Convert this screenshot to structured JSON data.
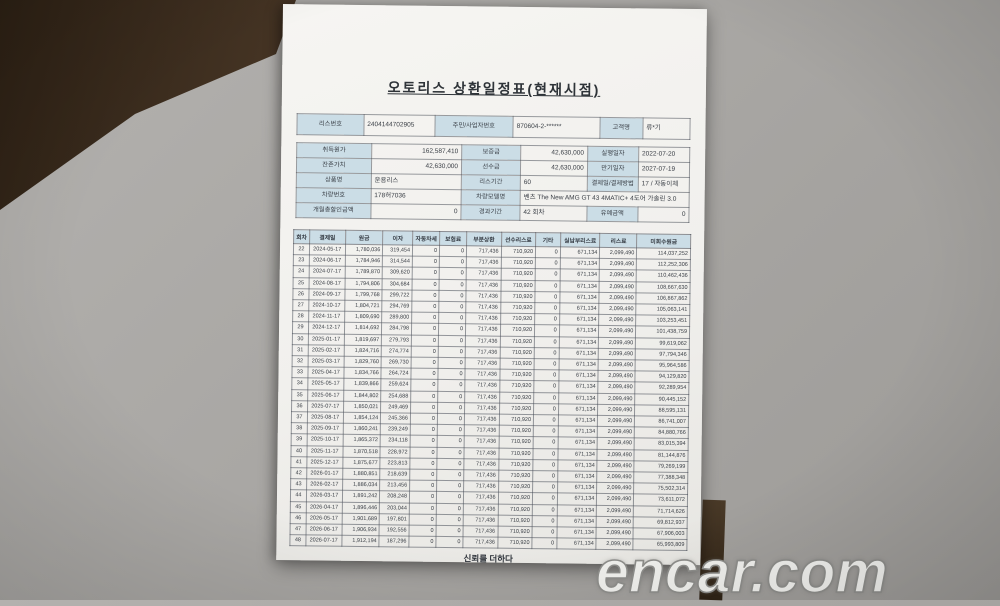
{
  "watermark": "encar.com",
  "colors": {
    "label_bg": "#cbdde6",
    "paper": "#f3f2ef",
    "wood": "#3a2b1f",
    "surface": "#a9a7a4"
  },
  "document": {
    "title": "오토리스 상환일정표(현재시점)",
    "footer_slogan": "신뢰를 더하다",
    "lease_head": {
      "lease_no_label": "리스번호",
      "lease_no": "2404144702905",
      "id_label": "주민/사업자번호",
      "id_no": "870604-2-******",
      "customer_label": "고객명",
      "customer": "류*기"
    },
    "contract": {
      "acq_cost_label": "취득원가",
      "acq_cost": "162,587,410",
      "deposit_label": "보증금",
      "deposit": "42,630,000",
      "start_date_label": "실행일자",
      "start_date": "2022-07-20",
      "residual_label": "잔존가치",
      "residual": "42,630,000",
      "advance_label": "선수금",
      "advance": "42,630,000",
      "maturity_label": "만기일자",
      "maturity": "2027-07-19",
      "product_label": "상품명",
      "product": "운용리스",
      "term_label": "리스기간",
      "term": "60",
      "pay_method_label": "결제일/결제방법",
      "pay_method": "17 / 자동이체",
      "car_no_label": "차량번호",
      "car_no": "178허7036",
      "model_label": "차량모델명",
      "model": "벤츠 The New AMG GT 43 4MATIC+ 4도어 가솔린 3.0",
      "discount_label": "개월총할인금액",
      "discount": "0",
      "elapsed_label": "경과기간",
      "elapsed": "42 회차",
      "grace_label": "유예금액",
      "grace": "0"
    },
    "schedule_table": {
      "headers": [
        "회차",
        "결제일",
        "원금",
        "이자",
        "자동차세",
        "보험료",
        "부분상환",
        "선수리스료",
        "기타",
        "실납부리스료",
        "리스료",
        "미회수원금"
      ],
      "rows": [
        [
          "22",
          "2024-05-17",
          "1,780,036",
          "319,454",
          "0",
          "0",
          "717,436",
          "710,920",
          "0",
          "671,134",
          "2,099,490",
          "114,037,252"
        ],
        [
          "23",
          "2024-06-17",
          "1,784,946",
          "314,544",
          "0",
          "0",
          "717,436",
          "710,920",
          "0",
          "671,134",
          "2,099,490",
          "112,252,306"
        ],
        [
          "24",
          "2024-07-17",
          "1,789,870",
          "309,620",
          "0",
          "0",
          "717,436",
          "710,920",
          "0",
          "671,134",
          "2,099,490",
          "110,462,436"
        ],
        [
          "25",
          "2024-08-17",
          "1,794,806",
          "304,684",
          "0",
          "0",
          "717,436",
          "710,920",
          "0",
          "671,134",
          "2,099,490",
          "108,667,630"
        ],
        [
          "26",
          "2024-09-17",
          "1,799,768",
          "299,722",
          "0",
          "0",
          "717,436",
          "710,920",
          "0",
          "671,134",
          "2,099,490",
          "106,867,862"
        ],
        [
          "27",
          "2024-10-17",
          "1,804,721",
          "294,769",
          "0",
          "0",
          "717,436",
          "710,920",
          "0",
          "671,134",
          "2,099,490",
          "105,063,141"
        ],
        [
          "28",
          "2024-11-17",
          "1,809,690",
          "289,800",
          "0",
          "0",
          "717,436",
          "710,920",
          "0",
          "671,134",
          "2,099,490",
          "103,253,451"
        ],
        [
          "29",
          "2024-12-17",
          "1,814,692",
          "284,798",
          "0",
          "0",
          "717,436",
          "710,920",
          "0",
          "671,134",
          "2,099,490",
          "101,438,759"
        ],
        [
          "30",
          "2025-01-17",
          "1,819,697",
          "279,793",
          "0",
          "0",
          "717,436",
          "710,920",
          "0",
          "671,134",
          "2,099,490",
          "99,619,062"
        ],
        [
          "31",
          "2025-02-17",
          "1,824,716",
          "274,774",
          "0",
          "0",
          "717,436",
          "710,920",
          "0",
          "671,134",
          "2,099,490",
          "97,794,346"
        ],
        [
          "32",
          "2025-03-17",
          "1,829,760",
          "269,730",
          "0",
          "0",
          "717,436",
          "710,920",
          "0",
          "671,134",
          "2,099,490",
          "95,964,586"
        ],
        [
          "33",
          "2025-04-17",
          "1,834,766",
          "264,724",
          "0",
          "0",
          "717,436",
          "710,920",
          "0",
          "671,134",
          "2,099,490",
          "94,129,820"
        ],
        [
          "34",
          "2025-05-17",
          "1,839,866",
          "259,624",
          "0",
          "0",
          "717,436",
          "710,920",
          "0",
          "671,134",
          "2,099,490",
          "92,289,954"
        ],
        [
          "35",
          "2025-06-17",
          "1,844,802",
          "254,688",
          "0",
          "0",
          "717,436",
          "710,920",
          "0",
          "671,134",
          "2,099,490",
          "90,445,152"
        ],
        [
          "36",
          "2025-07-17",
          "1,850,021",
          "249,469",
          "0",
          "0",
          "717,436",
          "710,920",
          "0",
          "671,134",
          "2,099,490",
          "88,595,131"
        ],
        [
          "37",
          "2025-08-17",
          "1,854,124",
          "245,366",
          "0",
          "0",
          "717,436",
          "710,920",
          "0",
          "671,134",
          "2,099,490",
          "86,741,007"
        ],
        [
          "38",
          "2025-09-17",
          "1,860,241",
          "239,249",
          "0",
          "0",
          "717,436",
          "710,920",
          "0",
          "671,134",
          "2,099,490",
          "84,880,766"
        ],
        [
          "39",
          "2025-10-17",
          "1,865,372",
          "234,118",
          "0",
          "0",
          "717,436",
          "710,920",
          "0",
          "671,134",
          "2,099,490",
          "83,015,394"
        ],
        [
          "40",
          "2025-11-17",
          "1,870,518",
          "228,972",
          "0",
          "0",
          "717,436",
          "710,920",
          "0",
          "671,134",
          "2,099,490",
          "81,144,876"
        ],
        [
          "41",
          "2025-12-17",
          "1,875,677",
          "223,813",
          "0",
          "0",
          "717,436",
          "710,920",
          "0",
          "671,134",
          "2,099,490",
          "79,269,199"
        ],
        [
          "42",
          "2026-01-17",
          "1,880,851",
          "218,639",
          "0",
          "0",
          "717,436",
          "710,920",
          "0",
          "671,134",
          "2,099,490",
          "77,388,348"
        ],
        [
          "43",
          "2026-02-17",
          "1,886,034",
          "213,456",
          "0",
          "0",
          "717,436",
          "710,920",
          "0",
          "671,134",
          "2,099,490",
          "75,502,314"
        ],
        [
          "44",
          "2026-03-17",
          "1,891,242",
          "208,248",
          "0",
          "0",
          "717,436",
          "710,920",
          "0",
          "671,134",
          "2,099,490",
          "73,611,072"
        ],
        [
          "45",
          "2026-04-17",
          "1,896,446",
          "203,044",
          "0",
          "0",
          "717,436",
          "710,920",
          "0",
          "671,134",
          "2,099,490",
          "71,714,626"
        ],
        [
          "46",
          "2026-05-17",
          "1,901,689",
          "197,801",
          "0",
          "0",
          "717,436",
          "710,920",
          "0",
          "671,134",
          "2,099,490",
          "69,812,937"
        ],
        [
          "47",
          "2026-06-17",
          "1,906,934",
          "192,556",
          "0",
          "0",
          "717,436",
          "710,920",
          "0",
          "671,134",
          "2,099,490",
          "67,906,003"
        ],
        [
          "48",
          "2026-07-17",
          "1,912,194",
          "187,296",
          "0",
          "0",
          "717,436",
          "710,920",
          "0",
          "671,134",
          "2,099,490",
          "65,993,809"
        ]
      ]
    }
  }
}
